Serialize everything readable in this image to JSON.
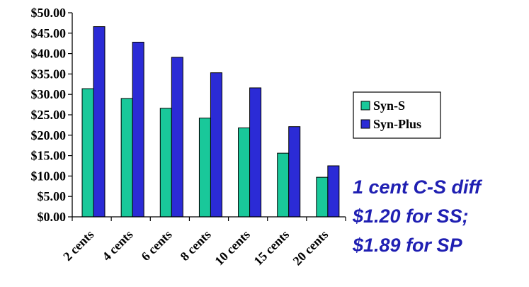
{
  "chart_data": {
    "type": "bar",
    "categories": [
      "2 cents",
      "4 cents",
      "6 cents",
      "8 cents",
      "10 cents",
      "15 cents",
      "20 cents"
    ],
    "series": [
      {
        "name": "Syn-S",
        "values": [
          31.4,
          29.0,
          26.6,
          24.2,
          21.8,
          15.6,
          9.7
        ],
        "color": "#19c89a"
      },
      {
        "name": "Syn-Plus",
        "values": [
          46.6,
          42.8,
          39.1,
          35.3,
          31.6,
          22.1,
          12.5
        ],
        "color": "#2b2bd6"
      }
    ],
    "yticks": [
      "$0.00",
      "$5.00",
      "$10.00",
      "$15.00",
      "$20.00",
      "$25.00",
      "$30.00",
      "$35.00",
      "$40.00",
      "$45.00",
      "$50.00"
    ],
    "ylim": [
      0,
      50
    ],
    "legend_position": "right",
    "grid": false
  },
  "annotation": {
    "line1": "1 cent C-S  diff",
    "line2": "$1.20  for SS;",
    "line3": "$1.89 for SP"
  }
}
